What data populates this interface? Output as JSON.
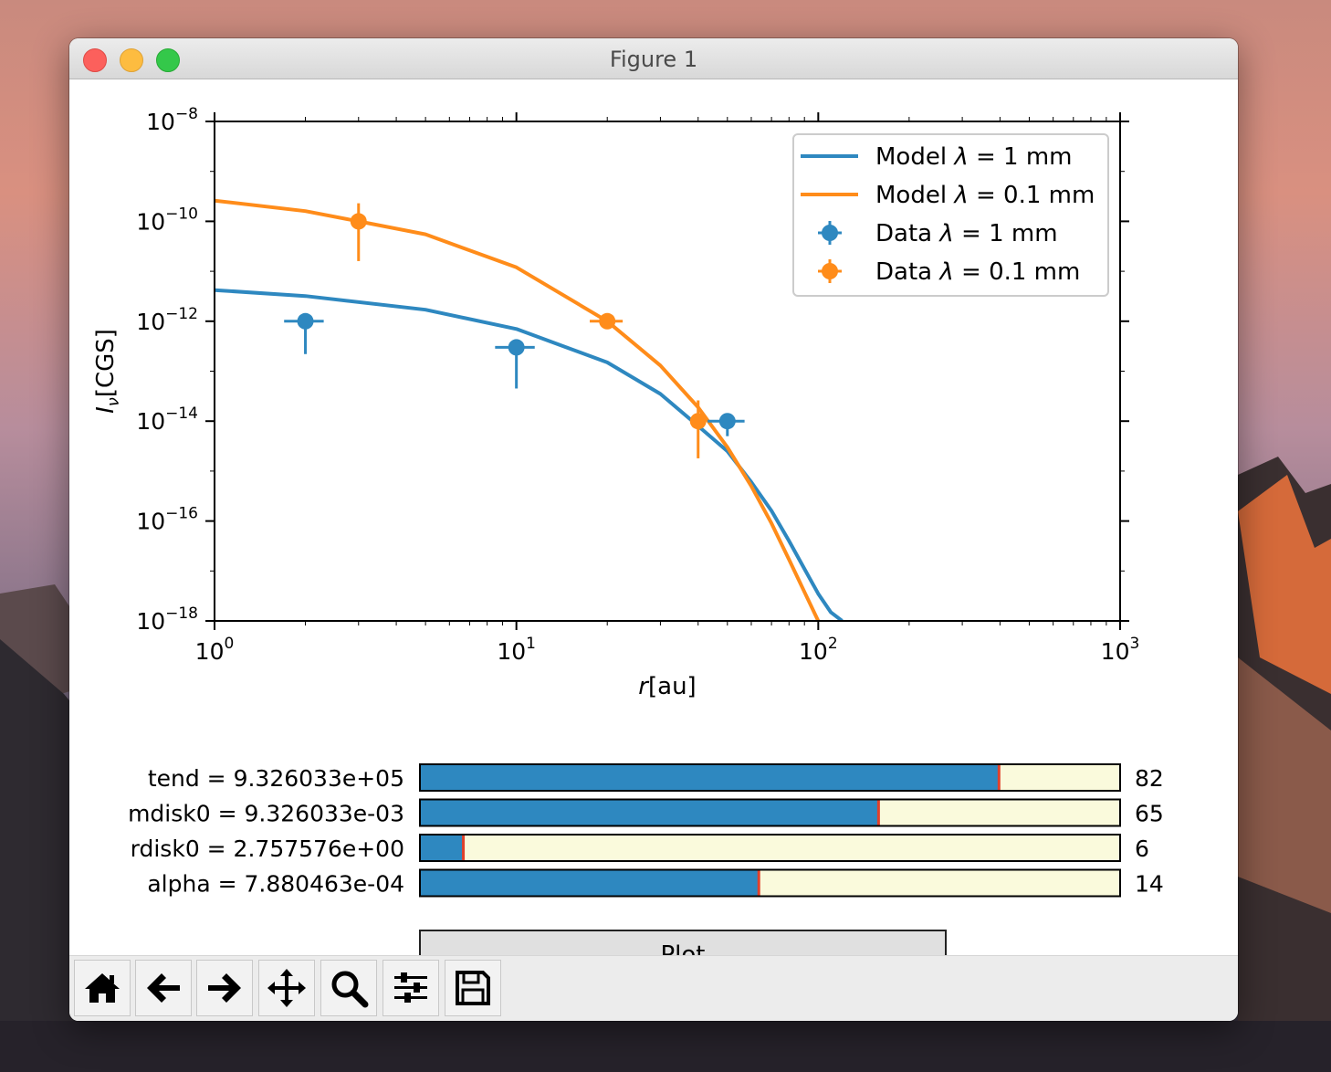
{
  "window": {
    "title": "Figure 1"
  },
  "chart_data": {
    "type": "line",
    "xscale": "log",
    "yscale": "log",
    "xlim": [
      1,
      1000
    ],
    "ylim": [
      1e-18,
      1e-08
    ],
    "xlabel": "r[au]",
    "ylabel": "Iν[CGS]",
    "x_ticks": [
      {
        "value": 1,
        "base": "10",
        "exp": "0"
      },
      {
        "value": 10,
        "base": "10",
        "exp": "1"
      },
      {
        "value": 100,
        "base": "10",
        "exp": "2"
      },
      {
        "value": 1000,
        "base": "10",
        "exp": "3"
      }
    ],
    "y_ticks": [
      {
        "value": 1e-08,
        "base": "10",
        "exp": "−8"
      },
      {
        "value": 1e-10,
        "base": "10",
        "exp": "−10"
      },
      {
        "value": 1e-12,
        "base": "10",
        "exp": "−12"
      },
      {
        "value": 1e-14,
        "base": "10",
        "exp": "−14"
      },
      {
        "value": 1e-16,
        "base": "10",
        "exp": "−16"
      },
      {
        "value": 1e-18,
        "base": "10",
        "exp": "−18"
      }
    ],
    "legend_position": "upper-right",
    "series": [
      {
        "name": "Model λ = 1 mm",
        "kind": "line",
        "color": "#2e88c0",
        "points": [
          [
            1,
            4.2e-12
          ],
          [
            2,
            3.2e-12
          ],
          [
            5,
            1.7e-12
          ],
          [
            10,
            7e-13
          ],
          [
            20,
            1.5e-13
          ],
          [
            30,
            3.5e-14
          ],
          [
            40,
            8e-15
          ],
          [
            50,
            2.5e-15
          ],
          [
            60,
            6e-16
          ],
          [
            70,
            1.6e-16
          ],
          [
            80,
            4e-17
          ],
          [
            90,
            1.1e-17
          ],
          [
            100,
            3.5e-18
          ],
          [
            110,
            1.5e-18
          ],
          [
            120,
            1e-18
          ]
        ]
      },
      {
        "name": "Model λ = 0.1 mm",
        "kind": "line",
        "color": "#ff8c1a",
        "points": [
          [
            1,
            2.6e-10
          ],
          [
            2,
            1.6e-10
          ],
          [
            3,
            1e-10
          ],
          [
            5,
            5.5e-11
          ],
          [
            10,
            1.2e-11
          ],
          [
            20,
            1e-12
          ],
          [
            30,
            1.3e-13
          ],
          [
            40,
            1.9e-14
          ],
          [
            50,
            3e-15
          ],
          [
            60,
            5e-16
          ],
          [
            70,
            9e-17
          ],
          [
            80,
            1.7e-17
          ],
          [
            90,
            3.8e-18
          ],
          [
            100,
            1e-18
          ]
        ]
      },
      {
        "name": "Data λ = 1 mm",
        "kind": "errorbar",
        "color": "#2e88c0",
        "points": [
          {
            "x": 2,
            "y": 1e-12,
            "xerr": [
              1.7,
              2.3
            ],
            "yerr": [
              2.2e-13,
              1.3e-12
            ]
          },
          {
            "x": 10,
            "y": 3e-13,
            "xerr": [
              8.5,
              11.5
            ],
            "yerr": [
              4.5e-14,
              3.5e-13
            ]
          },
          {
            "x": 50,
            "y": 1e-14,
            "xerr": [
              43,
              57
            ],
            "yerr": [
              5e-15,
              1.1e-14
            ]
          }
        ]
      },
      {
        "name": "Data λ = 0.1 mm",
        "kind": "errorbar",
        "color": "#ff8c1a",
        "points": [
          {
            "x": 3,
            "y": 1e-10,
            "xerr": [
              2.95,
              3.05
            ],
            "yerr": [
              1.6e-11,
              2.3e-10
            ]
          },
          {
            "x": 20,
            "y": 1e-12,
            "xerr": [
              17.5,
              22.5
            ],
            "yerr": [
              9e-13,
              1.1e-12
            ]
          },
          {
            "x": 40,
            "y": 1e-14,
            "xerr": [
              38,
              42
            ],
            "yerr": [
              1.8e-15,
              2.6e-14
            ]
          }
        ]
      }
    ]
  },
  "legend": [
    {
      "prefix": "Model ",
      "lambda": "λ",
      "suffix": " = 1 mm",
      "color": "#2e88c0",
      "kind": "line"
    },
    {
      "prefix": "Model ",
      "lambda": "λ",
      "suffix": " = 0.1 mm",
      "color": "#ff8c1a",
      "kind": "line"
    },
    {
      "prefix": "Data ",
      "lambda": "λ",
      "suffix": " = 1 mm",
      "color": "#2e88c0",
      "kind": "errorbar"
    },
    {
      "prefix": "Data ",
      "lambda": "λ",
      "suffix": " = 0.1 mm",
      "color": "#ff8c1a",
      "kind": "errorbar"
    }
  ],
  "sliders": [
    {
      "label": "tend =  9.326033e+05",
      "value": 82,
      "fraction": 0.827
    },
    {
      "label": "mdisk0 =  9.326033e-03",
      "value": 65,
      "fraction": 0.655
    },
    {
      "label": "rdisk0 =  2.757576e+00",
      "value": 6,
      "fraction": 0.062
    },
    {
      "label": "alpha =  7.880463e-04",
      "value": 14,
      "fraction": 0.484
    }
  ],
  "slider_colors": {
    "fill": "#2e88c0",
    "track": "#fafadc",
    "marker": "#e0412c"
  },
  "plot_button": {
    "label": "Plot"
  },
  "toolbar": {
    "tools": [
      {
        "name": "home-icon"
      },
      {
        "name": "back-arrow-icon"
      },
      {
        "name": "forward-arrow-icon"
      },
      {
        "name": "pan-icon"
      },
      {
        "name": "zoom-icon"
      },
      {
        "name": "configure-subplots-icon"
      },
      {
        "name": "save-icon"
      }
    ]
  }
}
